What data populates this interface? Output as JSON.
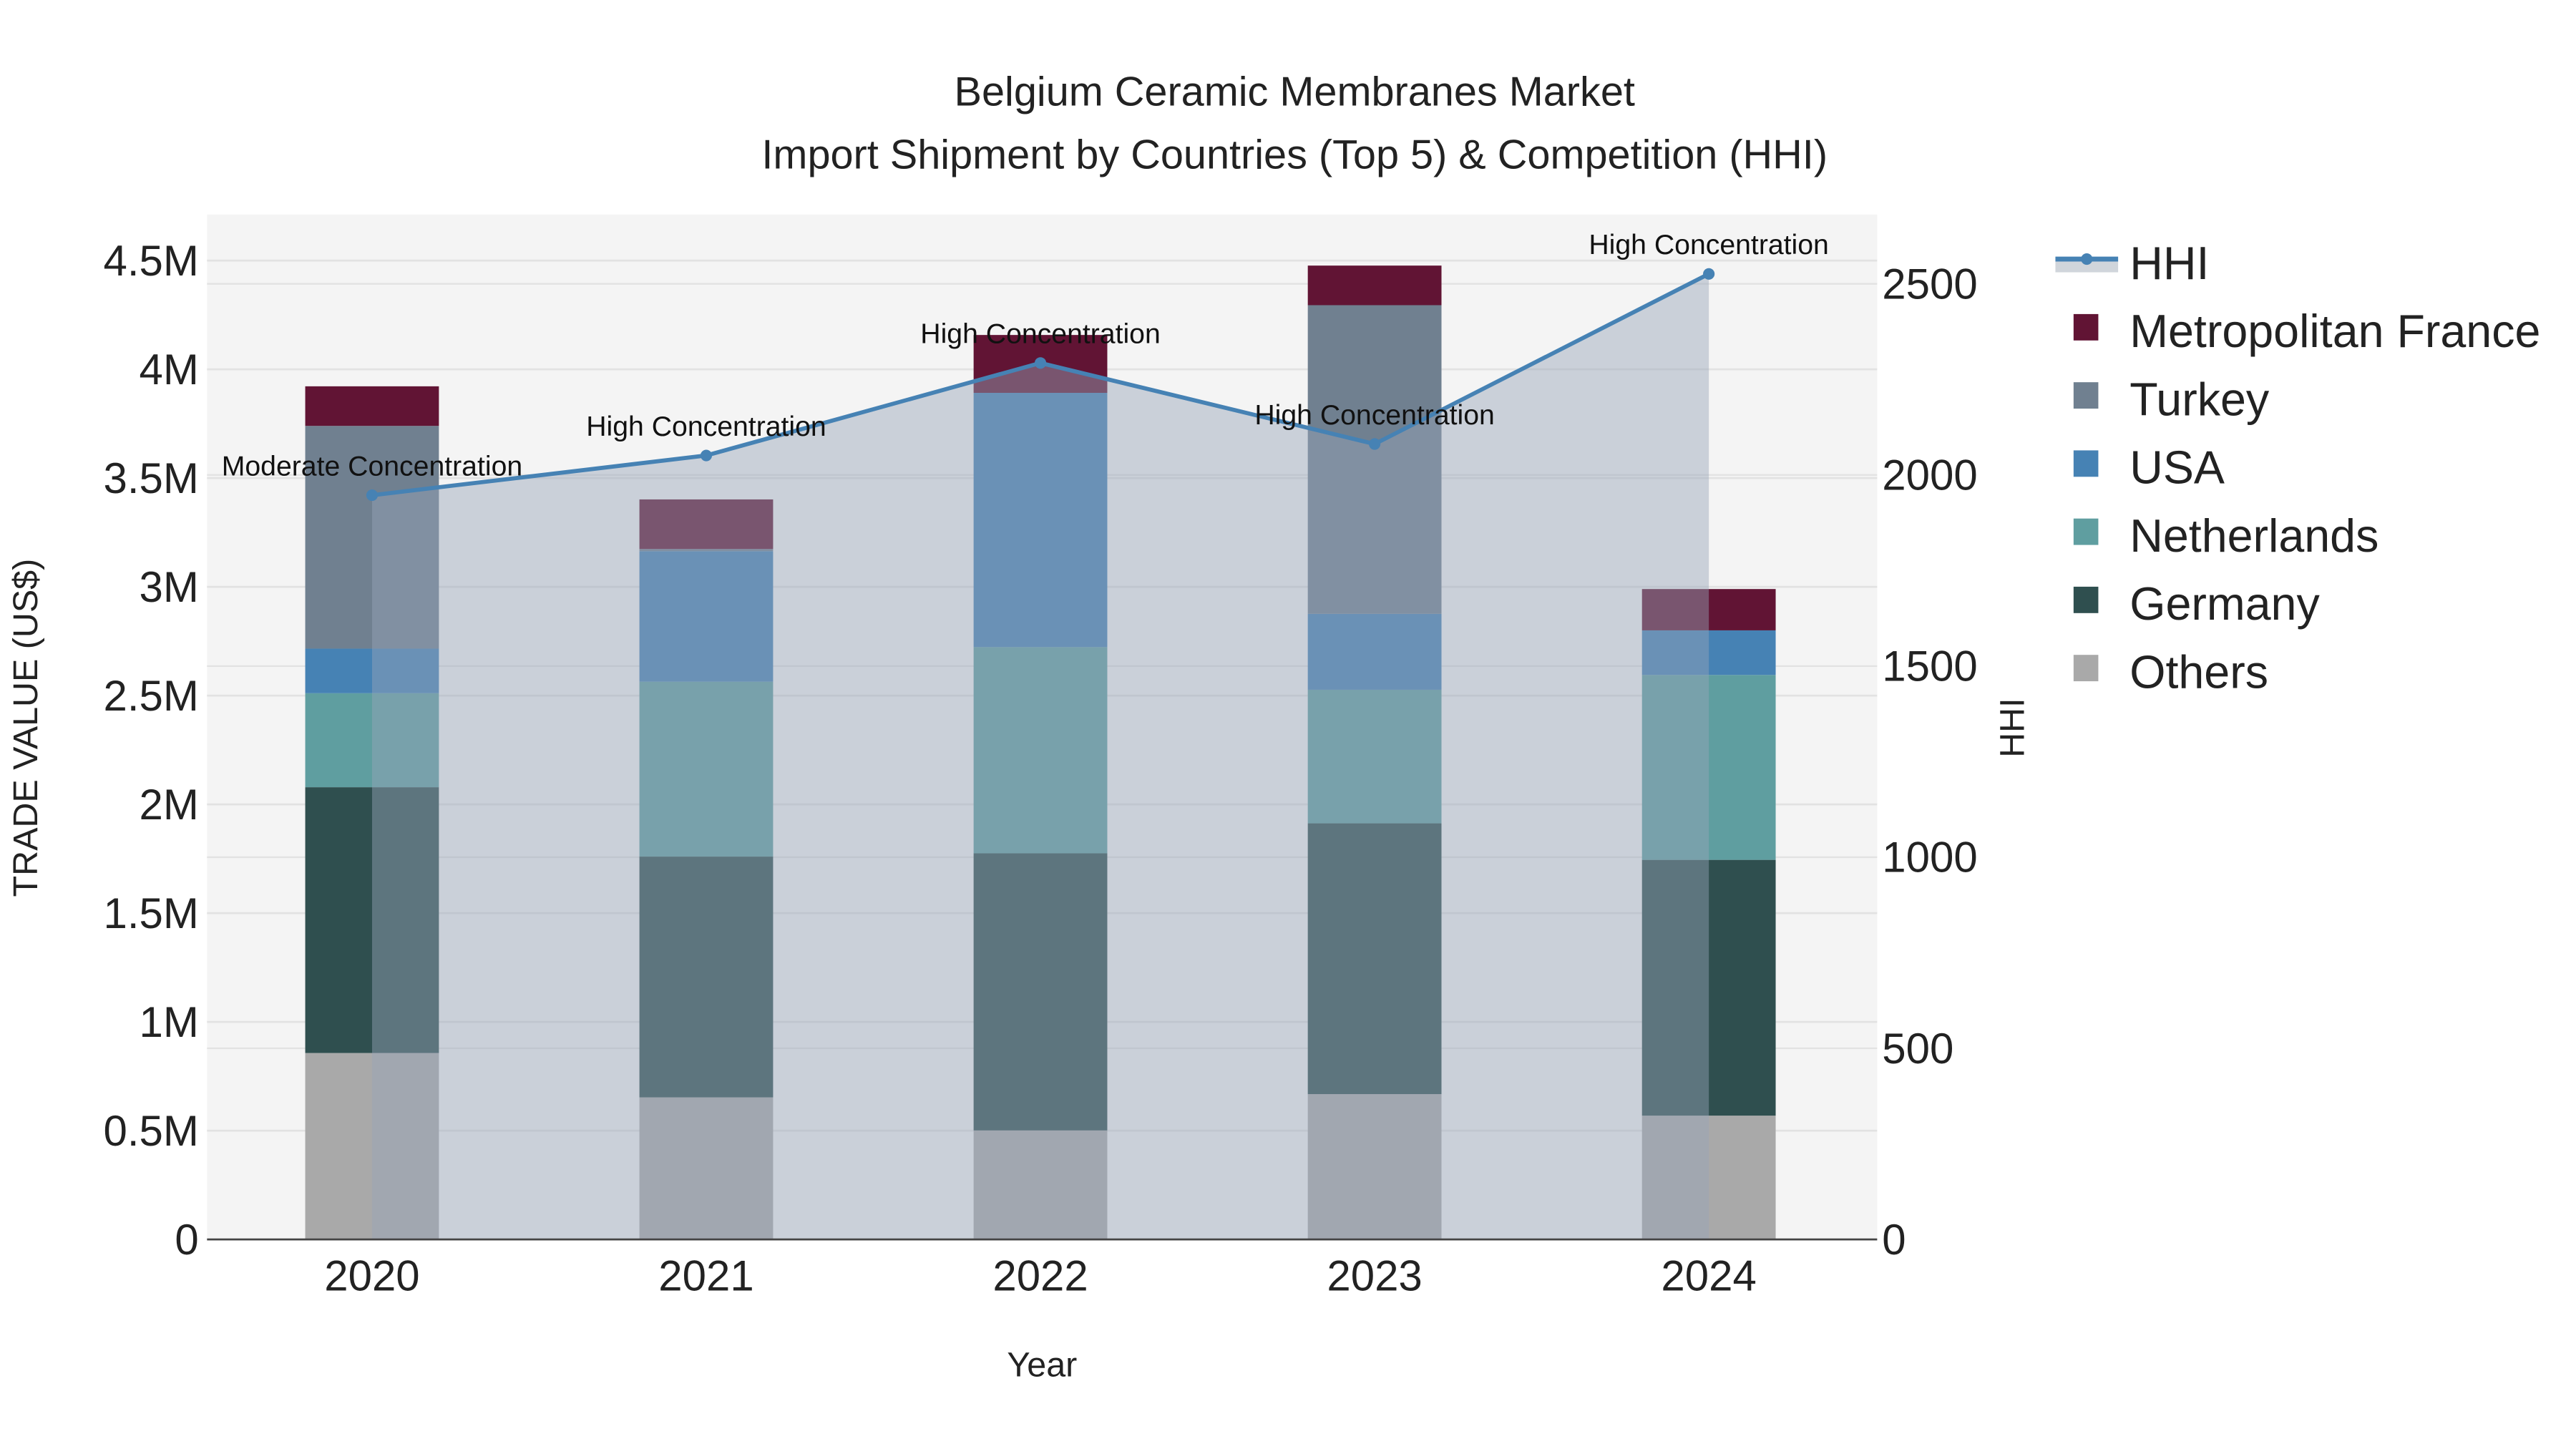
{
  "chart_data": {
    "type": "bar",
    "title": "Belgium Ceramic Membranes Market",
    "subtitle": "Import Shipment by Countries (Top 5) & Competition (HHI)",
    "xlabel": "Year",
    "ylabel": "TRADE VALUE (US$)",
    "y2label": "HHI",
    "categories": [
      "2020",
      "2021",
      "2022",
      "2023",
      "2024"
    ],
    "ylim": [
      0,
      4700000
    ],
    "y2lim": [
      0,
      2700
    ],
    "yticks": [
      0,
      500000,
      1000000,
      1500000,
      2000000,
      2500000,
      3000000,
      3500000,
      4000000,
      4500000
    ],
    "ytick_labels": [
      "0",
      "0.5M",
      "1M",
      "1.5M",
      "2M",
      "2.5M",
      "3M",
      "3.5M",
      "4M",
      "4.5M"
    ],
    "y2ticks": [
      0,
      500,
      1000,
      1500,
      2000,
      2500
    ],
    "y2tick_labels": [
      "0",
      "500",
      "1000",
      "1500",
      "2000",
      "2500"
    ],
    "grid": true,
    "legend_placement": "right",
    "series": [
      {
        "name": "Others",
        "color": "#A9A9A9",
        "values": [
          857000,
          653000,
          501000,
          668000,
          569000
        ]
      },
      {
        "name": "Germany",
        "color": "#2F4F4F",
        "values": [
          1222000,
          1107000,
          1274000,
          1245000,
          1176000
        ]
      },
      {
        "name": "Netherlands",
        "color": "#5F9EA0",
        "values": [
          432000,
          804000,
          948000,
          614000,
          850000
        ]
      },
      {
        "name": "USA",
        "color": "#4682B4",
        "values": [
          205000,
          600000,
          1169000,
          349000,
          205000
        ]
      },
      {
        "name": "Turkey",
        "color": "#708090",
        "values": [
          1024000,
          10000,
          0,
          1419000,
          0
        ]
      },
      {
        "name": "Metropolitan France",
        "color": "#611434",
        "values": [
          182000,
          228000,
          266000,
          182000,
          190000
        ]
      }
    ],
    "line": {
      "name": "HHI",
      "color": "#4682B4",
      "values": [
        1947,
        2051,
        2293,
        2081,
        2526
      ],
      "annotations": [
        "Moderate Concentration",
        "High Concentration",
        "High Concentration",
        "High Concentration",
        "High Concentration"
      ]
    },
    "legend_order": [
      "HHI",
      "Metropolitan France",
      "Turkey",
      "USA",
      "Netherlands",
      "Germany",
      "Others"
    ]
  }
}
